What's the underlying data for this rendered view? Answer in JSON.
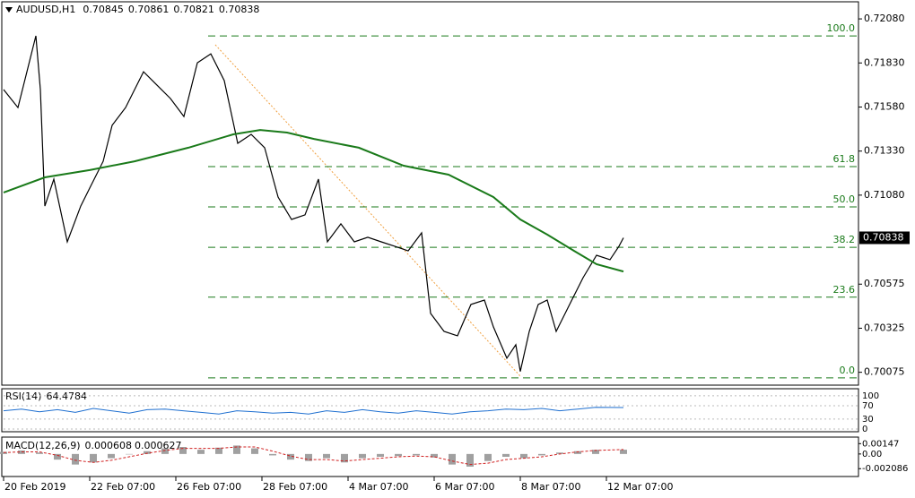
{
  "chart_data": {
    "type": "line",
    "title": "AUDUSD,H1",
    "ohlc": [
      0.70845,
      0.70861,
      0.70821,
      0.70838
    ],
    "current_price": 0.70838,
    "xlim": [
      0,
      476.5
    ],
    "xticks": [
      {
        "value": 0,
        "label": "20 Feb 2019"
      },
      {
        "value": 48,
        "label": "22 Feb 07:00"
      },
      {
        "value": 96,
        "label": "26 Feb 07:00"
      },
      {
        "value": 144,
        "label": "28 Feb 07:00"
      },
      {
        "value": 192,
        "label": "4 Mar 07:00"
      },
      {
        "value": 240,
        "label": "6 Mar 07:00"
      },
      {
        "value": 288,
        "label": "8 Mar 07:00"
      },
      {
        "value": 336,
        "label": "12 Mar 07:00"
      }
    ],
    "ylim": [
      0.70002,
      0.72177
    ],
    "yticks": [
      {
        "value": 0.7208,
        "label": "0.72080"
      },
      {
        "value": 0.7183,
        "label": "0.71830"
      },
      {
        "value": 0.7158,
        "label": "0.71580"
      },
      {
        "value": 0.7133,
        "label": "0.71330"
      },
      {
        "value": 0.7108,
        "label": "0.71080"
      },
      0.70575,
      0.70325,
      0.70075
    ],
    "series": [
      {
        "color": "#000000",
        "x": [
          0,
          8,
          13,
          18,
          20.5,
          23,
          28,
          35.5,
          43,
          48,
          55.5,
          60.5,
          68,
          78,
          85.5,
          93,
          100.5,
          108,
          115.5,
          123,
          130.5,
          138,
          145.5,
          153,
          160.5,
          168,
          175.5,
          180.5,
          188,
          195.5,
          203,
          210.5,
          218,
          225.5,
          233,
          238,
          245.5,
          253,
          260.5,
          268,
          273,
          280.5,
          285.5,
          288,
          293,
          298,
          303,
          308,
          315.5,
          323,
          330.5,
          338,
          343,
          345.5
        ],
        "values": [
          0.71679,
          0.71577,
          0.7178,
          0.71984,
          0.71679,
          0.71018,
          0.71171,
          0.70815,
          0.71018,
          0.7112,
          0.71272,
          0.71476,
          0.71577,
          0.7178,
          0.71704,
          0.71628,
          0.71526,
          0.71831,
          0.71882,
          0.7173,
          0.71374,
          0.71425,
          0.71349,
          0.71069,
          0.70942,
          0.70968,
          0.71171,
          0.70815,
          0.70917,
          0.70815,
          0.70841,
          0.70815,
          0.7079,
          0.70764,
          0.70866,
          0.70409,
          0.70307,
          0.70282,
          0.7046,
          0.70485,
          0.70333,
          0.70155,
          0.70231,
          0.70079,
          0.70307,
          0.7046,
          0.70485,
          0.70307,
          0.7046,
          0.70612,
          0.70739,
          0.70714,
          0.7079,
          0.70838
        ]
      },
      {
        "color": "#1a7a1a",
        "x": [
          0,
          23,
          48,
          73,
          103,
          128,
          143,
          158,
          173,
          198,
          223,
          248,
          273,
          288,
          303,
          318,
          330.5,
          345.5
        ],
        "values": [
          0.71095,
          0.71181,
          0.71222,
          0.71272,
          0.71349,
          0.71425,
          0.7145,
          0.71435,
          0.71399,
          0.71349,
          0.71247,
          0.71196,
          0.71069,
          0.70942,
          0.70856,
          0.70764,
          0.70688,
          0.70647
        ]
      }
    ],
    "fibonacci": {
      "start": 114,
      "levels": [
        {
          "value": 100,
          "label": "100.0"
        },
        61.8,
        {
          "value": 50,
          "label": "50.0"
        },
        38.2,
        23.6,
        {
          "value": 0,
          "label": "0.0"
        }
      ],
      "prices": [
        0.71983,
        0.71242,
        0.71013,
        0.70784,
        0.70501,
        0.70043
      ],
      "color": "#1a7a1a"
    },
    "rsi": {
      "name": "RSI(14)",
      "current": 64.4784,
      "color": "#1e6fd0",
      "ylim": [
        -8,
        121
      ],
      "yticks": [
        100,
        70,
        30,
        0
      ],
      "x": [
        0,
        10,
        20,
        30,
        40,
        50,
        60,
        70,
        80,
        90,
        100,
        110,
        120,
        130,
        140,
        150,
        160,
        170,
        180,
        190,
        200,
        210,
        220,
        230,
        240,
        250,
        260,
        270,
        280,
        290,
        300,
        310,
        320,
        330,
        345.5
      ],
      "values": [
        55,
        60,
        52,
        58,
        50,
        62,
        55,
        48,
        58,
        60,
        55,
        50,
        45,
        55,
        52,
        48,
        50,
        45,
        55,
        50,
        58,
        52,
        48,
        55,
        50,
        45,
        52,
        55,
        60,
        58,
        62,
        55,
        60,
        65,
        64.4784
      ]
    },
    "macd": {
      "name": "MACD(12,26,9)",
      "current": [
        0.000608,
        0.000627
      ],
      "ylim": [
        -0.0032,
        0.0024
      ],
      "yticks": [
        0.00147,
        {
          "value": 0,
          "label": "0.00"
        },
        -0.002086
      ],
      "x": [
        0,
        10,
        20,
        30,
        40,
        50,
        60,
        70,
        80,
        90,
        100,
        110,
        120,
        130,
        140,
        150,
        160,
        170,
        180,
        190,
        200,
        210,
        220,
        230,
        240,
        250,
        260,
        270,
        280,
        290,
        300,
        310,
        320,
        330,
        345.5
      ],
      "values": [
        0.0003,
        0.0005,
        0.0002,
        -0.0008,
        -0.0015,
        -0.0012,
        -0.0006,
        0,
        0.0004,
        0.0008,
        0.001,
        0.0006,
        0.0009,
        0.0012,
        0.0008,
        -0.0002,
        -0.0008,
        -0.001,
        -0.0006,
        -0.0012,
        -0.0006,
        -0.0004,
        -0.0003,
        -0.0002,
        -0.0005,
        -0.0015,
        -0.0018,
        -0.001,
        -0.0004,
        -0.0006,
        -0.0002,
        0.0002,
        0.0004,
        0.0006,
        0.000608
      ],
      "signal": [
        0.0002,
        0.0003,
        0.0003,
        -0.0002,
        -0.0009,
        -0.0012,
        -0.0009,
        -0.0004,
        0.0001,
        0.0005,
        0.0008,
        0.0008,
        0.0008,
        0.001,
        0.001,
        0.0004,
        -0.0003,
        -0.0008,
        -0.0008,
        -0.001,
        -0.0008,
        -0.0006,
        -0.0004,
        -0.0003,
        -0.0004,
        -0.001,
        -0.0015,
        -0.0013,
        -0.0008,
        -0.0006,
        -0.0004,
        0,
        0.0003,
        0.0005,
        0.000627
      ],
      "bar_color": "#a0a0a0",
      "signal_color": "#d02020"
    }
  }
}
